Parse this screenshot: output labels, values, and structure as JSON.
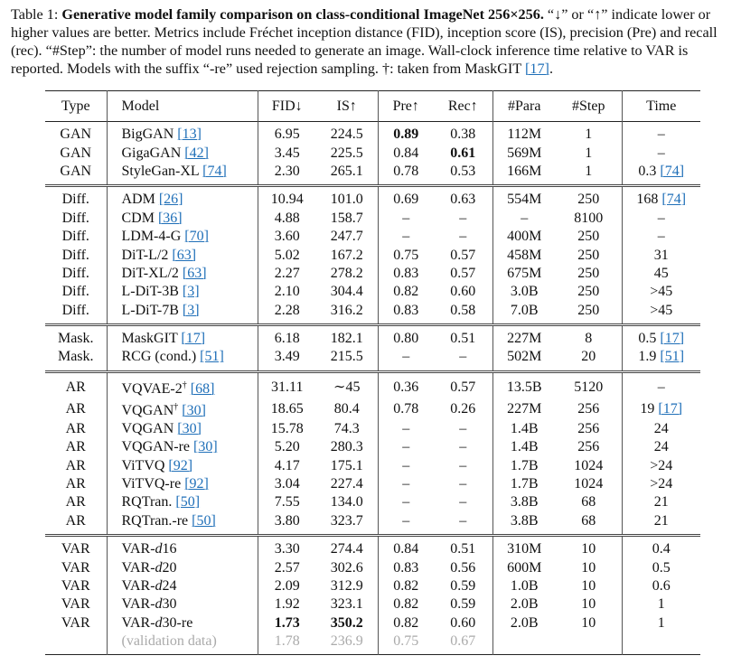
{
  "caption": [
    {
      "text": "Table 1: "
    },
    {
      "text": "Generative model family comparison on class-conditional ImageNet 256×256.",
      "style": "bold"
    },
    {
      "text": " “↓” or “↑” indicate lower or higher values are better. Metrics include Fréchet inception distance (FID), inception score (IS), precision (Pre) and recall (rec). “#Step”: the number of model runs needed to generate an image. Wall-clock inference time relative to VAR is reported. Models with the suffix “-re” used rejection sampling. †: taken from MaskGIT "
    },
    {
      "text": "[17]",
      "style": "ref"
    },
    {
      "text": "."
    }
  ],
  "table": {
    "header": [
      "Type",
      "Model",
      "FID↓",
      "IS↑",
      "Pre↑",
      "Rec↑",
      "#Para",
      "#Step",
      "Time"
    ],
    "groups": [
      {
        "rows": [
          [
            "GAN",
            [
              {
                "text": "BigGAN "
              },
              {
                "text": "[13]",
                "style": "ref"
              }
            ],
            "6.95",
            "224.5",
            [
              {
                "text": "0.89",
                "style": "bold"
              }
            ],
            "0.38",
            "112M",
            "1",
            "–"
          ],
          [
            "GAN",
            [
              {
                "text": "GigaGAN "
              },
              {
                "text": "[42]",
                "style": "ref"
              }
            ],
            "3.45",
            "225.5",
            "0.84",
            [
              {
                "text": "0.61",
                "style": "bold"
              }
            ],
            "569M",
            "1",
            "–"
          ],
          [
            "GAN",
            [
              {
                "text": "StyleGan-XL "
              },
              {
                "text": "[74]",
                "style": "ref"
              }
            ],
            "2.30",
            "265.1",
            "0.78",
            "0.53",
            "166M",
            "1",
            [
              {
                "text": "0.3 "
              },
              {
                "text": "[74]",
                "style": "ref"
              }
            ]
          ]
        ]
      },
      {
        "rows": [
          [
            "Diff.",
            [
              {
                "text": "ADM "
              },
              {
                "text": "[26]",
                "style": "ref"
              }
            ],
            "10.94",
            "101.0",
            "0.69",
            "0.63",
            "554M",
            "250",
            [
              {
                "text": "168 "
              },
              {
                "text": "[74]",
                "style": "ref"
              }
            ]
          ],
          [
            "Diff.",
            [
              {
                "text": "CDM "
              },
              {
                "text": "[36]",
                "style": "ref"
              }
            ],
            "4.88",
            "158.7",
            "–",
            "–",
            "–",
            "8100",
            "–"
          ],
          [
            "Diff.",
            [
              {
                "text": "LDM-4-G "
              },
              {
                "text": "[70]",
                "style": "ref"
              }
            ],
            "3.60",
            "247.7",
            "–",
            "–",
            "400M",
            "250",
            "–"
          ],
          [
            "Diff.",
            [
              {
                "text": "DiT-L/2 "
              },
              {
                "text": "[63]",
                "style": "ref"
              }
            ],
            "5.02",
            "167.2",
            "0.75",
            "0.57",
            "458M",
            "250",
            "31"
          ],
          [
            "Diff.",
            [
              {
                "text": "DiT-XL/2 "
              },
              {
                "text": "[63]",
                "style": "ref"
              }
            ],
            "2.27",
            "278.2",
            "0.83",
            "0.57",
            "675M",
            "250",
            "45"
          ],
          [
            "Diff.",
            [
              {
                "text": "L-DiT-3B "
              },
              {
                "text": "[3]",
                "style": "ref"
              }
            ],
            "2.10",
            "304.4",
            "0.82",
            "0.60",
            "3.0B",
            "250",
            ">45"
          ],
          [
            "Diff.",
            [
              {
                "text": "L-DiT-7B "
              },
              {
                "text": "[3]",
                "style": "ref"
              }
            ],
            "2.28",
            "316.2",
            "0.83",
            "0.58",
            "7.0B",
            "250",
            ">45"
          ]
        ]
      },
      {
        "rows": [
          [
            "Mask.",
            [
              {
                "text": "MaskGIT "
              },
              {
                "text": "[17]",
                "style": "ref"
              }
            ],
            "6.18",
            "182.1",
            "0.80",
            "0.51",
            "227M",
            "8",
            [
              {
                "text": "0.5 "
              },
              {
                "text": "[17]",
                "style": "ref"
              }
            ]
          ],
          [
            "Mask.",
            [
              {
                "text": "RCG (cond.) "
              },
              {
                "text": "[51]",
                "style": "ref"
              }
            ],
            "3.49",
            "215.5",
            "–",
            "–",
            "502M",
            "20",
            [
              {
                "text": "1.9 "
              },
              {
                "text": "[51]",
                "style": "ref"
              }
            ]
          ]
        ]
      },
      {
        "rows": [
          [
            "AR",
            [
              {
                "text": "VQVAE-2"
              },
              {
                "text": "†",
                "style": "sup"
              },
              {
                "text": " "
              },
              {
                "text": "[68]",
                "style": "ref"
              }
            ],
            "31.11",
            "∼45",
            "0.36",
            "0.57",
            "13.5B",
            "5120",
            "–"
          ],
          [
            "AR",
            [
              {
                "text": "VQGAN"
              },
              {
                "text": "†",
                "style": "sup"
              },
              {
                "text": " "
              },
              {
                "text": "[30]",
                "style": "ref"
              }
            ],
            "18.65",
            "80.4",
            "0.78",
            "0.26",
            "227M",
            "256",
            [
              {
                "text": "19 "
              },
              {
                "text": "[17]",
                "style": "ref"
              }
            ]
          ],
          [
            "AR",
            [
              {
                "text": "VQGAN "
              },
              {
                "text": "[30]",
                "style": "ref"
              }
            ],
            "15.78",
            "74.3",
            "–",
            "–",
            "1.4B",
            "256",
            "24"
          ],
          [
            "AR",
            [
              {
                "text": "VQGAN-re "
              },
              {
                "text": "[30]",
                "style": "ref"
              }
            ],
            "5.20",
            "280.3",
            "–",
            "–",
            "1.4B",
            "256",
            "24"
          ],
          [
            "AR",
            [
              {
                "text": "ViTVQ "
              },
              {
                "text": "[92]",
                "style": "ref"
              }
            ],
            "4.17",
            "175.1",
            "–",
            "–",
            "1.7B",
            "1024",
            ">24"
          ],
          [
            "AR",
            [
              {
                "text": "ViTVQ-re "
              },
              {
                "text": "[92]",
                "style": "ref"
              }
            ],
            "3.04",
            "227.4",
            "–",
            "–",
            "1.7B",
            "1024",
            ">24"
          ],
          [
            "AR",
            [
              {
                "text": "RQTran. "
              },
              {
                "text": "[50]",
                "style": "ref"
              }
            ],
            "7.55",
            "134.0",
            "–",
            "–",
            "3.8B",
            "68",
            "21"
          ],
          [
            "AR",
            [
              {
                "text": "RQTran.-re "
              },
              {
                "text": "[50]",
                "style": "ref"
              }
            ],
            "3.80",
            "323.7",
            "–",
            "–",
            "3.8B",
            "68",
            "21"
          ]
        ]
      },
      {
        "rows": [
          [
            "VAR",
            [
              {
                "text": "VAR-"
              },
              {
                "text": "d",
                "style": "italic"
              },
              {
                "text": "16"
              }
            ],
            "3.30",
            "274.4",
            "0.84",
            "0.51",
            "310M",
            "10",
            "0.4"
          ],
          [
            "VAR",
            [
              {
                "text": "VAR-"
              },
              {
                "text": "d",
                "style": "italic"
              },
              {
                "text": "20"
              }
            ],
            "2.57",
            "302.6",
            "0.83",
            "0.56",
            "600M",
            "10",
            "0.5"
          ],
          [
            "VAR",
            [
              {
                "text": "VAR-"
              },
              {
                "text": "d",
                "style": "italic"
              },
              {
                "text": "24"
              }
            ],
            "2.09",
            "312.9",
            "0.82",
            "0.59",
            "1.0B",
            "10",
            "0.6"
          ],
          [
            "VAR",
            [
              {
                "text": "VAR-"
              },
              {
                "text": "d",
                "style": "italic"
              },
              {
                "text": "30"
              }
            ],
            "1.92",
            "323.1",
            "0.82",
            "0.59",
            "2.0B",
            "10",
            "1"
          ],
          [
            "VAR",
            [
              {
                "text": "VAR-"
              },
              {
                "text": "d",
                "style": "italic"
              },
              {
                "text": "30-re"
              }
            ],
            [
              {
                "text": "1.73",
                "style": "bold"
              }
            ],
            [
              {
                "text": "350.2",
                "style": "bold"
              }
            ],
            "0.82",
            "0.60",
            "2.0B",
            "10",
            "1"
          ],
          {
            "style": "muted",
            "cells": [
              null,
              "(validation data)",
              "1.78",
              "236.9",
              "0.75",
              "0.67",
              null,
              null,
              null
            ]
          }
        ]
      }
    ]
  }
}
